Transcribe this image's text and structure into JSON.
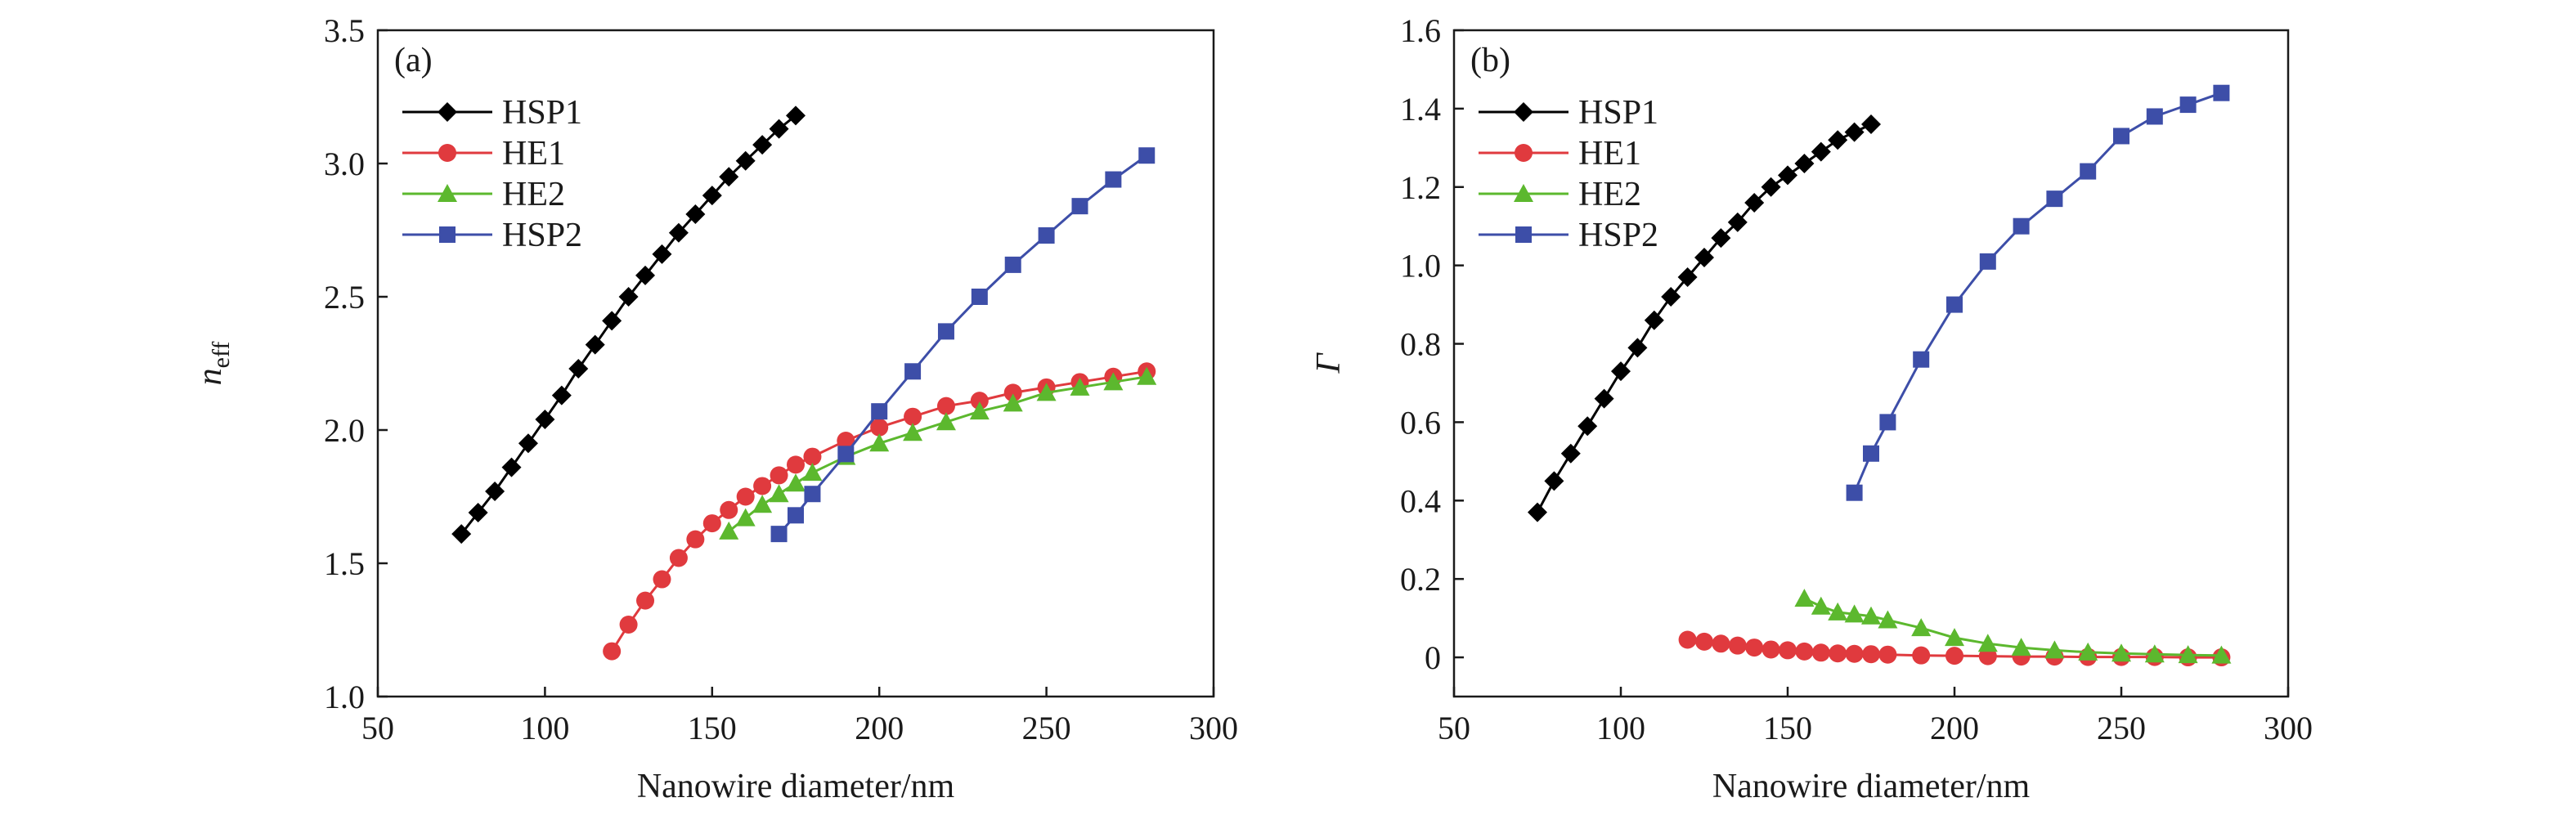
{
  "chart_data": [
    {
      "type": "line",
      "panel_label": "(a)",
      "xlabel": "Nanowire diameter/nm",
      "ylabel_main": "n",
      "ylabel_sub": "eff",
      "xlim": [
        50,
        300
      ],
      "ylim": [
        1.0,
        3.5
      ],
      "xticks": [
        "50",
        "100",
        "150",
        "200",
        "250",
        "300"
      ],
      "yticks": [
        "1.0",
        "1.5",
        "2.0",
        "2.5",
        "3.0",
        "3.5"
      ],
      "legend_position": "top-left",
      "series": [
        {
          "name": "HSP1",
          "color": "#000000",
          "marker": "diamond",
          "x": [
            75,
            80,
            85,
            90,
            95,
            100,
            105,
            110,
            115,
            120,
            125,
            130,
            135,
            140,
            145,
            150,
            155,
            160,
            165,
            170,
            175
          ],
          "y": [
            1.61,
            1.69,
            1.77,
            1.86,
            1.95,
            2.04,
            2.13,
            2.23,
            2.32,
            2.41,
            2.5,
            2.58,
            2.66,
            2.74,
            2.81,
            2.88,
            2.95,
            3.01,
            3.07,
            3.13,
            3.18
          ]
        },
        {
          "name": "HE1",
          "color": "#e03a3e",
          "marker": "circle",
          "x": [
            120,
            125,
            130,
            135,
            140,
            145,
            150,
            155,
            160,
            165,
            170,
            175,
            180,
            190,
            200,
            210,
            220,
            230,
            240,
            250,
            260,
            270,
            280
          ],
          "y": [
            1.17,
            1.27,
            1.36,
            1.44,
            1.52,
            1.59,
            1.65,
            1.7,
            1.75,
            1.79,
            1.83,
            1.87,
            1.9,
            1.96,
            2.01,
            2.05,
            2.09,
            2.11,
            2.14,
            2.16,
            2.18,
            2.2,
            2.22
          ]
        },
        {
          "name": "HE2",
          "color": "#5cb82e",
          "marker": "triangle",
          "x": [
            155,
            160,
            165,
            170,
            175,
            180,
            190,
            200,
            210,
            220,
            230,
            240,
            250,
            260,
            270,
            280
          ],
          "y": [
            1.62,
            1.67,
            1.72,
            1.76,
            1.8,
            1.84,
            1.9,
            1.95,
            1.99,
            2.03,
            2.07,
            2.1,
            2.14,
            2.16,
            2.18,
            2.2
          ]
        },
        {
          "name": "HSP2",
          "color": "#3d4ea8",
          "marker": "square",
          "x": [
            170,
            175,
            180,
            190,
            200,
            210,
            220,
            230,
            240,
            250,
            260,
            270,
            280
          ],
          "y": [
            1.61,
            1.68,
            1.76,
            1.91,
            2.07,
            2.22,
            2.37,
            2.5,
            2.62,
            2.73,
            2.84,
            2.94,
            3.03
          ]
        }
      ]
    },
    {
      "type": "line",
      "panel_label": "(b)",
      "xlabel": "Nanowire diameter/nm",
      "ylabel_main": "Γ",
      "ylabel_sub": "",
      "xlim": [
        50,
        300
      ],
      "ylim": [
        -0.1,
        1.6
      ],
      "xticks": [
        "50",
        "100",
        "150",
        "200",
        "250",
        "300"
      ],
      "yticks": [
        "0",
        "0.2",
        "0.4",
        "0.6",
        "0.8",
        "1.0",
        "1.2",
        "1.4",
        "1.6"
      ],
      "legend_position": "top-left",
      "series": [
        {
          "name": "HSP1",
          "color": "#000000",
          "marker": "diamond",
          "x": [
            75,
            80,
            85,
            90,
            95,
            100,
            105,
            110,
            115,
            120,
            125,
            130,
            135,
            140,
            145,
            150,
            155,
            160,
            165,
            170,
            175
          ],
          "y": [
            0.37,
            0.45,
            0.52,
            0.59,
            0.66,
            0.73,
            0.79,
            0.86,
            0.92,
            0.97,
            1.02,
            1.07,
            1.11,
            1.16,
            1.2,
            1.23,
            1.26,
            1.29,
            1.32,
            1.34,
            1.36
          ]
        },
        {
          "name": "HE1",
          "color": "#e03a3e",
          "marker": "circle",
          "x": [
            120,
            125,
            130,
            135,
            140,
            145,
            150,
            155,
            160,
            165,
            170,
            175,
            180,
            190,
            200,
            210,
            220,
            230,
            240,
            250,
            260,
            270,
            280
          ],
          "y": [
            0.045,
            0.04,
            0.035,
            0.03,
            0.025,
            0.02,
            0.018,
            0.015,
            0.012,
            0.01,
            0.009,
            0.008,
            0.007,
            0.005,
            0.004,
            0.003,
            0.002,
            0.002,
            0.001,
            0.001,
            0.001,
            0.0,
            0.0
          ]
        },
        {
          "name": "HE2",
          "color": "#5cb82e",
          "marker": "triangle",
          "x": [
            155,
            160,
            165,
            170,
            175,
            180,
            190,
            200,
            210,
            220,
            230,
            240,
            250,
            260,
            270,
            280
          ],
          "y": [
            0.15,
            0.13,
            0.115,
            0.11,
            0.105,
            0.095,
            0.075,
            0.05,
            0.035,
            0.025,
            0.018,
            0.013,
            0.01,
            0.008,
            0.006,
            0.005
          ]
        },
        {
          "name": "HSP2",
          "color": "#3d4ea8",
          "marker": "square",
          "x": [
            170,
            175,
            180,
            190,
            200,
            210,
            220,
            230,
            240,
            250,
            260,
            270,
            280
          ],
          "y": [
            0.42,
            0.52,
            0.6,
            0.76,
            0.9,
            1.01,
            1.1,
            1.17,
            1.24,
            1.33,
            1.38,
            1.41,
            1.44
          ]
        }
      ]
    }
  ]
}
